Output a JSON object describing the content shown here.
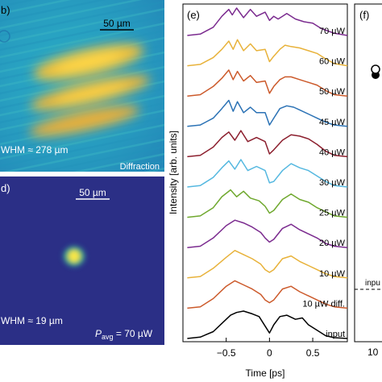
{
  "panels": {
    "c": {
      "label": "b)",
      "scalebar_label": "50 µm",
      "fwhm_text": "WHM ≈ 278 µm",
      "mode_text": "Diffraction"
    },
    "d": {
      "label": "d)",
      "scalebar_label": "50 µm",
      "fwhm_text": "WHM ≈ 19 µm",
      "power_symbol": "P",
      "power_subscript": "avg",
      "power_value": " = 70 µW"
    },
    "f": {
      "label": "(f)",
      "input_label": "inpu",
      "tick_label": "10"
    }
  },
  "chart_data": {
    "type": "line",
    "panel_label": "(e)",
    "title": "",
    "xlabel": "Time [ps]",
    "ylabel": "Intensity [arb. units]",
    "xlim": [
      -1.0,
      0.9
    ],
    "xticks": [
      -0.5,
      0,
      0.5
    ],
    "xtick_labels": [
      "−0.5",
      "0",
      "0.5"
    ],
    "series": [
      {
        "name": "70 µW",
        "color": "#7b2b8f",
        "x": [
          -0.95,
          -0.8,
          -0.65,
          -0.55,
          -0.47,
          -0.43,
          -0.38,
          -0.3,
          -0.22,
          -0.15,
          -0.05,
          0.0,
          0.05,
          0.1,
          0.15,
          0.2,
          0.3,
          0.4,
          0.5,
          0.6,
          0.75,
          0.9
        ],
        "y": [
          0.0,
          0.05,
          0.3,
          0.7,
          0.95,
          0.75,
          1.0,
          0.65,
          0.95,
          0.7,
          0.85,
          0.55,
          0.7,
          0.6,
          0.7,
          0.8,
          0.6,
          0.5,
          0.45,
          0.25,
          0.08,
          0.0
        ]
      },
      {
        "name": "60 µW",
        "color": "#e8b23a",
        "x": [
          -0.95,
          -0.8,
          -0.65,
          -0.55,
          -0.47,
          -0.42,
          -0.37,
          -0.3,
          -0.22,
          -0.15,
          -0.05,
          0.0,
          0.05,
          0.12,
          0.18,
          0.25,
          0.35,
          0.45,
          0.55,
          0.65,
          0.75,
          0.9
        ],
        "y": [
          0.0,
          0.05,
          0.3,
          0.6,
          0.9,
          0.6,
          0.95,
          0.55,
          0.8,
          0.55,
          0.6,
          0.15,
          0.35,
          0.6,
          0.75,
          0.7,
          0.65,
          0.55,
          0.45,
          0.25,
          0.08,
          0.0
        ]
      },
      {
        "name": "50 µW",
        "color": "#cc5a2b",
        "x": [
          -0.95,
          -0.8,
          -0.65,
          -0.55,
          -0.47,
          -0.42,
          -0.37,
          -0.3,
          -0.22,
          -0.15,
          -0.05,
          0.0,
          0.05,
          0.12,
          0.18,
          0.25,
          0.35,
          0.45,
          0.55,
          0.65,
          0.75,
          0.9
        ],
        "y": [
          0.0,
          0.05,
          0.35,
          0.65,
          0.95,
          0.6,
          0.9,
          0.55,
          0.75,
          0.5,
          0.55,
          0.1,
          0.35,
          0.6,
          0.7,
          0.7,
          0.6,
          0.5,
          0.4,
          0.2,
          0.05,
          0.0
        ]
      },
      {
        "name": "45 µW",
        "color": "#2b72b5",
        "x": [
          -0.95,
          -0.8,
          -0.65,
          -0.55,
          -0.47,
          -0.42,
          -0.37,
          -0.3,
          -0.22,
          -0.15,
          -0.05,
          0.0,
          0.05,
          0.12,
          0.2,
          0.28,
          0.35,
          0.45,
          0.55,
          0.65,
          0.75,
          0.9
        ],
        "y": [
          0.0,
          0.05,
          0.3,
          0.65,
          0.95,
          0.55,
          0.9,
          0.5,
          0.7,
          0.5,
          0.5,
          0.05,
          0.3,
          0.65,
          0.75,
          0.7,
          0.6,
          0.45,
          0.3,
          0.15,
          0.05,
          0.0
        ]
      },
      {
        "name": "40 µW",
        "color": "#8c1f2e",
        "x": [
          -0.95,
          -0.8,
          -0.65,
          -0.55,
          -0.47,
          -0.4,
          -0.33,
          -0.25,
          -0.15,
          -0.05,
          0.0,
          0.05,
          0.15,
          0.25,
          0.35,
          0.45,
          0.55,
          0.65,
          0.75,
          0.9
        ],
        "y": [
          0.0,
          0.05,
          0.35,
          0.7,
          0.9,
          0.6,
          0.95,
          0.55,
          0.7,
          0.55,
          0.1,
          0.25,
          0.6,
          0.8,
          0.75,
          0.65,
          0.45,
          0.2,
          0.05,
          0.0
        ]
      },
      {
        "name": "30 µW",
        "color": "#55b8e0",
        "x": [
          -0.95,
          -0.8,
          -0.65,
          -0.55,
          -0.47,
          -0.4,
          -0.33,
          -0.25,
          -0.15,
          -0.05,
          0.0,
          0.05,
          0.15,
          0.25,
          0.35,
          0.45,
          0.55,
          0.65,
          0.75,
          0.9
        ],
        "y": [
          0.0,
          0.05,
          0.35,
          0.7,
          0.95,
          0.65,
          1.0,
          0.6,
          0.75,
          0.6,
          0.15,
          0.2,
          0.6,
          0.85,
          0.7,
          0.6,
          0.4,
          0.2,
          0.05,
          0.0
        ]
      },
      {
        "name": "25 µW",
        "color": "#6fa82e",
        "x": [
          -0.95,
          -0.8,
          -0.65,
          -0.55,
          -0.45,
          -0.38,
          -0.3,
          -0.22,
          -0.12,
          -0.05,
          0.0,
          0.05,
          0.15,
          0.25,
          0.35,
          0.45,
          0.55,
          0.65,
          0.75,
          0.9
        ],
        "y": [
          0.0,
          0.05,
          0.35,
          0.75,
          1.0,
          0.75,
          0.95,
          0.7,
          0.6,
          0.4,
          0.15,
          0.25,
          0.65,
          0.85,
          0.65,
          0.55,
          0.35,
          0.2,
          0.05,
          0.0
        ]
      },
      {
        "name": "20 µW",
        "color": "#7b2b8f",
        "x": [
          -0.95,
          -0.8,
          -0.65,
          -0.5,
          -0.4,
          -0.3,
          -0.2,
          -0.1,
          -0.05,
          0.0,
          0.05,
          0.15,
          0.25,
          0.35,
          0.45,
          0.55,
          0.65,
          0.75,
          0.9
        ],
        "y": [
          0.0,
          0.05,
          0.35,
          0.8,
          1.0,
          0.9,
          0.75,
          0.55,
          0.35,
          0.2,
          0.3,
          0.7,
          0.85,
          0.65,
          0.5,
          0.35,
          0.15,
          0.05,
          0.0
        ]
      },
      {
        "name": "10 µW",
        "color": "#e8b23a",
        "x": [
          -0.95,
          -0.8,
          -0.65,
          -0.5,
          -0.4,
          -0.3,
          -0.2,
          -0.1,
          -0.05,
          0.0,
          0.05,
          0.15,
          0.25,
          0.35,
          0.45,
          0.55,
          0.65,
          0.75,
          0.9
        ],
        "y": [
          0.0,
          0.05,
          0.35,
          0.75,
          1.0,
          0.85,
          0.7,
          0.5,
          0.3,
          0.2,
          0.3,
          0.7,
          0.8,
          0.6,
          0.45,
          0.3,
          0.15,
          0.05,
          0.0
        ]
      },
      {
        "name": "10 µW diff.",
        "color": "#cc5a2b",
        "x": [
          -0.95,
          -0.8,
          -0.65,
          -0.5,
          -0.4,
          -0.3,
          -0.2,
          -0.1,
          -0.05,
          0.0,
          0.05,
          0.15,
          0.25,
          0.35,
          0.45,
          0.55,
          0.65,
          0.75,
          0.9
        ],
        "y": [
          0.0,
          0.05,
          0.35,
          0.8,
          1.0,
          0.85,
          0.7,
          0.5,
          0.3,
          0.2,
          0.3,
          0.7,
          0.8,
          0.6,
          0.45,
          0.3,
          0.15,
          0.05,
          0.0
        ]
      },
      {
        "name": "input",
        "color": "#000000",
        "x": [
          -0.95,
          -0.8,
          -0.65,
          -0.55,
          -0.45,
          -0.38,
          -0.3,
          -0.2,
          -0.12,
          -0.05,
          0.0,
          0.05,
          0.12,
          0.2,
          0.3,
          0.38,
          0.45,
          0.55,
          0.65,
          0.75,
          0.9
        ],
        "y": [
          0.0,
          0.05,
          0.25,
          0.55,
          0.85,
          0.95,
          1.0,
          0.9,
          0.8,
          0.45,
          0.2,
          0.5,
          0.8,
          0.85,
          0.7,
          0.75,
          0.5,
          0.3,
          0.1,
          0.03,
          0.0
        ]
      }
    ]
  }
}
